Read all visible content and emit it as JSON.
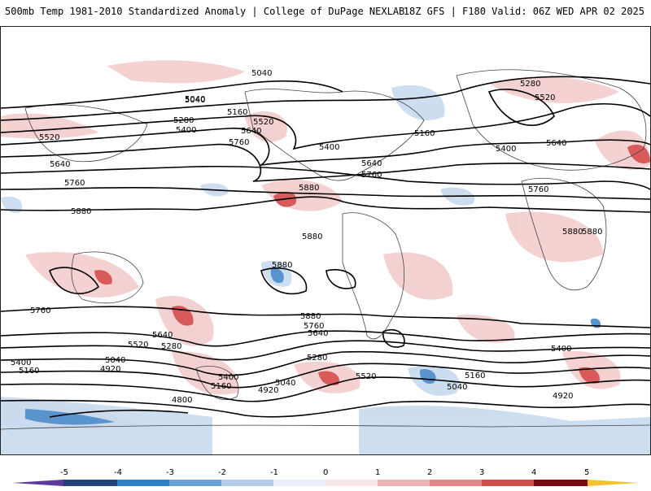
{
  "header": {
    "left": "500mb Temp 1981-2010 Standardized Anomaly | College of DuPage NEXLAB",
    "right": "18Z GFS | F180 Valid: 06Z WED APR 02 2025"
  },
  "contour_labels": [
    "5040",
    "5040",
    "5160",
    "5280",
    "5400",
    "5520",
    "5640",
    "5760",
    "5880",
    "5520",
    "5640",
    "5760",
    "5880",
    "5880",
    "5880",
    "5760",
    "5640",
    "5520",
    "5400",
    "5280",
    "5160",
    "5040",
    "4920",
    "4800",
    "5280",
    "5520",
    "5160",
    "5400",
    "5640",
    "5760",
    "5880",
    "5400",
    "5640",
    "5760",
    "5880",
    "5400",
    "5520",
    "5640",
    "5760",
    "5280",
    "5040",
    "5160",
    "4920",
    "5040",
    "4920",
    "5400",
    "5160",
    "5040",
    "5880"
  ],
  "colorbar": {
    "ticks": [
      "-5",
      "-4",
      "-3",
      "-2",
      "-1",
      "0",
      "1",
      "2",
      "3",
      "4",
      "5"
    ],
    "colors": {
      "neg5": "#5b3a9c",
      "neg4": "#23427a",
      "neg3": "#2f7fc6",
      "neg2": "#6aa3d8",
      "neg1": "#b3cee9",
      "neg05": "#dbe7f3",
      "pos05": "#f6dbdb",
      "pos1": "#eeb4b4",
      "pos2": "#e28888",
      "pos3": "#d04d4d",
      "pos4": "#b51e2a",
      "pos5": "#7a0a12",
      "top": "#f2c230"
    }
  }
}
